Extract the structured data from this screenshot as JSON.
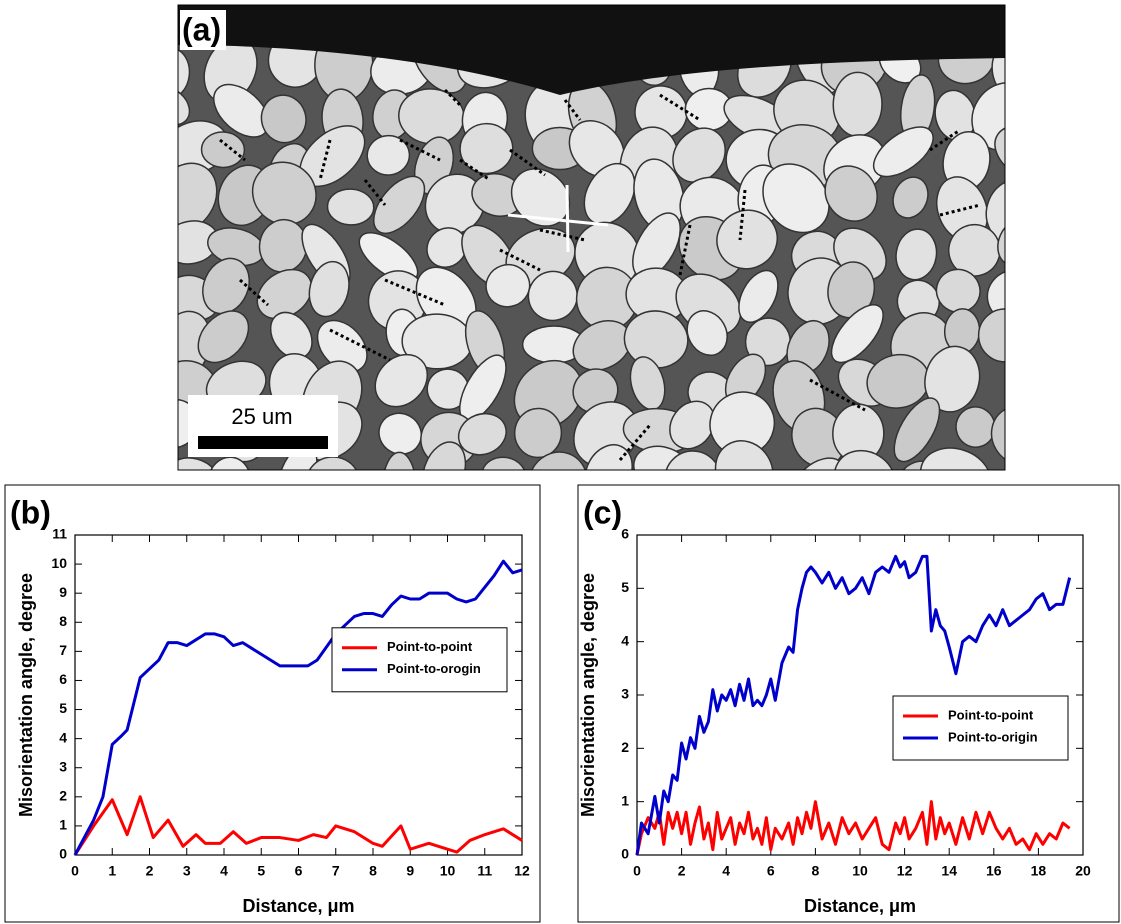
{
  "panel_a": {
    "label": "(a)",
    "scale_bar": "25 um"
  },
  "chart_data": [
    {
      "type": "line",
      "label": "(b)",
      "xlabel": "Distance, μm",
      "ylabel": "Misorientation angle, degree",
      "xlim": [
        0,
        12
      ],
      "xticks": [
        0,
        1,
        2,
        3,
        4,
        5,
        6,
        7,
        8,
        9,
        10,
        11,
        12
      ],
      "ylim": [
        0,
        11
      ],
      "yticks": [
        0,
        1,
        2,
        3,
        4,
        5,
        6,
        7,
        8,
        9,
        10,
        11
      ],
      "legend_position": "center-right",
      "series": [
        {
          "name": "Point-to-point",
          "color": "#ff0000",
          "x": [
            0,
            0.5,
            1,
            1.4,
            1.75,
            2.1,
            2.5,
            2.9,
            3.25,
            3.5,
            3.9,
            4.25,
            4.6,
            5,
            5.5,
            6,
            6.4,
            6.75,
            7,
            7.5,
            8,
            8.25,
            8.75,
            9,
            9.5,
            10,
            10.25,
            10.6,
            11,
            11.5,
            12
          ],
          "values": [
            0,
            1,
            1.9,
            0.7,
            2,
            0.6,
            1.2,
            0.3,
            0.7,
            0.4,
            0.4,
            0.8,
            0.4,
            0.6,
            0.6,
            0.5,
            0.7,
            0.6,
            1,
            0.8,
            0.4,
            0.3,
            1,
            0.2,
            0.4,
            0.2,
            0.1,
            0.5,
            0.7,
            0.9,
            0.5
          ]
        },
        {
          "name": "Point-to-orogin",
          "color": "#0000cc",
          "x": [
            0,
            0.5,
            0.75,
            1,
            1.25,
            1.4,
            1.75,
            2,
            2.25,
            2.5,
            2.75,
            3,
            3.5,
            3.75,
            4,
            4.25,
            4.5,
            4.75,
            5,
            5.5,
            6,
            6.25,
            6.5,
            7,
            7.5,
            7.75,
            8,
            8.25,
            8.5,
            8.75,
            9,
            9.25,
            9.5,
            10,
            10.25,
            10.5,
            10.75,
            11,
            11.25,
            11.5,
            11.75,
            12
          ],
          "values": [
            0,
            1.2,
            2,
            3.8,
            4.1,
            4.3,
            6.1,
            6.4,
            6.7,
            7.3,
            7.3,
            7.2,
            7.6,
            7.6,
            7.5,
            7.2,
            7.3,
            7.1,
            6.9,
            6.5,
            6.5,
            6.5,
            6.7,
            7.6,
            8.2,
            8.3,
            8.3,
            8.2,
            8.6,
            8.9,
            8.8,
            8.8,
            9,
            9,
            8.8,
            8.7,
            8.8,
            9.2,
            9.6,
            10.1,
            9.7,
            9.8
          ]
        }
      ]
    },
    {
      "type": "line",
      "label": "(c)",
      "xlabel": "Distance, μm",
      "ylabel": "Misorientation angle, degree",
      "xlim": [
        0,
        20
      ],
      "xticks": [
        0,
        2,
        4,
        6,
        8,
        10,
        12,
        14,
        16,
        18,
        20
      ],
      "ylim": [
        0,
        6
      ],
      "yticks": [
        0,
        1,
        2,
        3,
        4,
        5,
        6
      ],
      "legend_position": "lower-right",
      "x": [
        0,
        0.2,
        0.5,
        0.8,
        1.0,
        1.2,
        1.4,
        1.6,
        1.8,
        2.0,
        2.2,
        2.4,
        2.6,
        2.8,
        3.0,
        3.2,
        3.4,
        3.6,
        3.8,
        4.0,
        4.2,
        4.4,
        4.6,
        4.8,
        5.0,
        5.2,
        5.4,
        5.6,
        5.8,
        6.0,
        6.2,
        6.5,
        6.8,
        7.0,
        7.2,
        7.4,
        7.6,
        7.8,
        8.0,
        8.3,
        8.6,
        8.9,
        9.2,
        9.5,
        9.8,
        10.1,
        10.4,
        10.7,
        11.0,
        11.3,
        11.6,
        11.8,
        12.0,
        12.2,
        12.5,
        12.8,
        13.0,
        13.2,
        13.4,
        13.6,
        13.8,
        14.0,
        14.3,
        14.6,
        14.9,
        15.2,
        15.5,
        15.8,
        16.1,
        16.4,
        16.7,
        17.0,
        17.3,
        17.6,
        17.9,
        18.2,
        18.5,
        18.8,
        19.1,
        19.4
      ],
      "series": [
        {
          "name": "Point-to-point",
          "color": "#ff0000",
          "values": [
            0,
            0.4,
            0.7,
            0.5,
            0.8,
            0.2,
            0.8,
            0.5,
            0.8,
            0.4,
            0.8,
            0.2,
            0.6,
            0.9,
            0.3,
            0.6,
            0.1,
            0.8,
            0.3,
            0.5,
            0.7,
            0.2,
            0.6,
            0.4,
            0.8,
            0.3,
            0.5,
            0.2,
            0.7,
            0.1,
            0.5,
            0.3,
            0.6,
            0.2,
            0.7,
            0.4,
            0.8,
            0.5,
            1.0,
            0.3,
            0.6,
            0.2,
            0.7,
            0.4,
            0.6,
            0.3,
            0.5,
            0.7,
            0.2,
            0.1,
            0.6,
            0.4,
            0.7,
            0.3,
            0.5,
            0.8,
            0.2,
            1.0,
            0.3,
            0.7,
            0.4,
            0.6,
            0.2,
            0.7,
            0.3,
            0.8,
            0.4,
            0.8,
            0.5,
            0.3,
            0.5,
            0.2,
            0.3,
            0.1,
            0.4,
            0.2,
            0.4,
            0.3,
            0.6,
            0.5
          ]
        },
        {
          "name": "Point-to-origin",
          "color": "#0000cc",
          "values": [
            0,
            0.6,
            0.4,
            1.1,
            0.6,
            1.2,
            1.0,
            1.5,
            1.4,
            2.1,
            1.8,
            2.2,
            2.0,
            2.6,
            2.3,
            2.5,
            3.1,
            2.7,
            3.0,
            2.9,
            3.1,
            2.8,
            3.2,
            2.9,
            3.3,
            2.8,
            2.9,
            2.8,
            3.0,
            3.3,
            2.9,
            3.6,
            3.9,
            3.8,
            4.6,
            5.0,
            5.3,
            5.4,
            5.3,
            5.1,
            5.3,
            5.0,
            5.2,
            4.9,
            5.0,
            5.2,
            4.9,
            5.3,
            5.4,
            5.3,
            5.6,
            5.4,
            5.5,
            5.2,
            5.3,
            5.6,
            5.6,
            4.2,
            4.6,
            4.3,
            4.2,
            3.9,
            3.4,
            4.0,
            4.1,
            4.0,
            4.3,
            4.5,
            4.3,
            4.6,
            4.3,
            4.4,
            4.5,
            4.6,
            4.8,
            4.9,
            4.6,
            4.7,
            4.7,
            5.2
          ]
        }
      ]
    }
  ]
}
